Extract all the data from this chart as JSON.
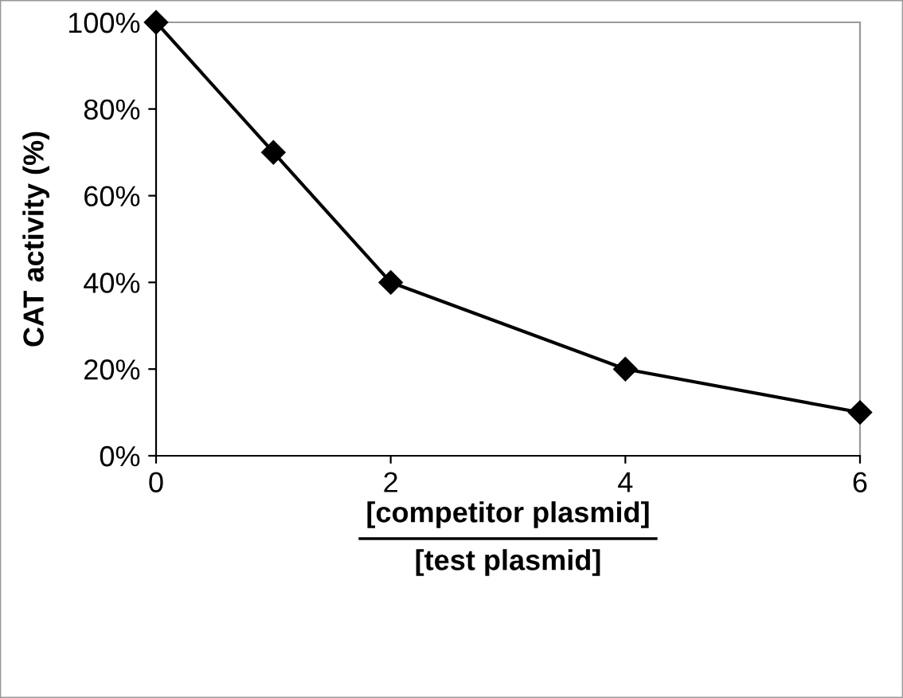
{
  "chart_data": {
    "type": "line",
    "x": [
      0,
      1,
      2,
      4,
      6
    ],
    "series": [
      {
        "color": "#000000",
        "values": [
          100,
          70,
          40,
          20,
          10
        ]
      }
    ],
    "xlabel": "[competitor plasmid]\n[test plasmid]",
    "ylabel": "CAT activity (%)",
    "xlim": [
      0,
      6
    ],
    "xticks": [
      0,
      2,
      4,
      6
    ],
    "ylim": [
      0,
      100
    ],
    "yticks": [
      {
        "value": 0,
        "label": "0%"
      },
      {
        "value": 20,
        "label": "20%"
      },
      {
        "value": 40,
        "label": "40%"
      },
      {
        "value": 60,
        "label": "60%"
      },
      {
        "value": 80,
        "label": "80%"
      },
      {
        "value": 100,
        "label": "100%"
      }
    ],
    "marker": "diamond",
    "line_style": "solid",
    "grid": false,
    "legend": false
  }
}
